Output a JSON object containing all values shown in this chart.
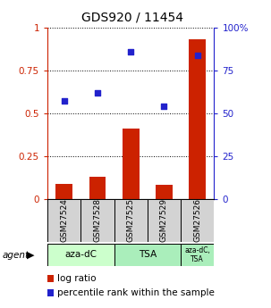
{
  "title": "GDS920 / 11454",
  "categories": [
    "GSM27524",
    "GSM27528",
    "GSM27525",
    "GSM27529",
    "GSM27526"
  ],
  "log_ratio": [
    0.085,
    0.13,
    0.41,
    0.08,
    0.93
  ],
  "percentile_rank": [
    57,
    62,
    86,
    54,
    84
  ],
  "bar_color": "#cc2200",
  "dot_color": "#2222cc",
  "yticks_left": [
    0,
    0.25,
    0.5,
    0.75,
    1.0
  ],
  "yticks_left_labels": [
    "0",
    "0.25",
    "0.5",
    "0.75",
    "1"
  ],
  "yticks_right": [
    0,
    25,
    50,
    75,
    100
  ],
  "yticks_right_labels": [
    "0",
    "25",
    "50",
    "75",
    "100%"
  ],
  "left_axis_color": "#cc2200",
  "right_axis_color": "#2222cc",
  "group1_label": "aza-dC",
  "group1_color": "#ccffcc",
  "group2_label": "TSA",
  "group2_color": "#aaeebb",
  "group3_label": "aza-dC,\nTSA",
  "group3_color": "#aaeebb",
  "agent_text": "agent",
  "legend1": "log ratio",
  "legend2": "percentile rank within the sample"
}
